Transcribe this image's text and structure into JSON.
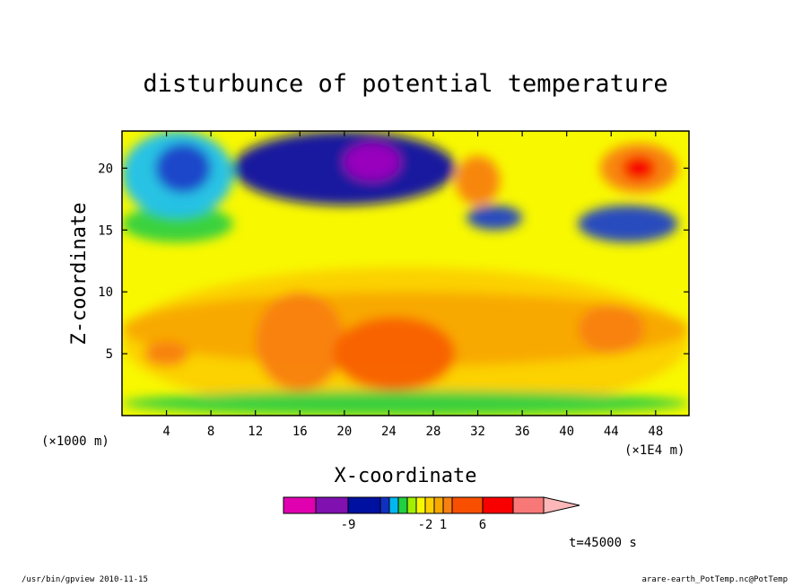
{
  "chart_data": {
    "type": "heatmap",
    "title": "disturbunce of potential temperature",
    "xlabel": "X-coordinate",
    "ylabel": "Z-coordinate",
    "xunit_left": "(×1000 m)",
    "xunit_right": "(×1E4 m)",
    "xlim": [
      0,
      51
    ],
    "ylim": [
      0,
      23
    ],
    "x_ticks": [
      4,
      8,
      12,
      16,
      20,
      24,
      28,
      32,
      36,
      40,
      44,
      48
    ],
    "y_ticks": [
      5,
      10,
      15,
      20
    ],
    "time_label": "t=45000 s",
    "grid": false,
    "colorbar": {
      "colors": [
        "#e000b0",
        "#8010b0",
        "#0010a0",
        "#1030c0",
        "#00b8f0",
        "#20d040",
        "#a0f000",
        "#f8f800",
        "#fcd000",
        "#f8a800",
        "#f88010",
        "#f85000",
        "#f80000",
        "#f87878",
        "#fcb8b8"
      ],
      "tick_labels": [
        {
          "value": -9,
          "label": "-9"
        },
        {
          "value": -2,
          "label": "-2"
        },
        {
          "value": 1,
          "label": "1"
        },
        {
          "value": 6,
          "label": "6"
        }
      ]
    },
    "field_regions": [
      {
        "x": [
          0,
          51
        ],
        "z": [
          0,
          23
        ],
        "level": 0
      },
      {
        "x": [
          0,
          51
        ],
        "z": [
          0,
          12
        ],
        "level": 1
      },
      {
        "x": [
          0,
          51
        ],
        "z": [
          4,
          10
        ],
        "level": 2
      },
      {
        "x": [
          12,
          20
        ],
        "z": [
          2,
          10
        ],
        "level": 3
      },
      {
        "x": [
          19,
          30
        ],
        "z": [
          2,
          8
        ],
        "level": 4
      },
      {
        "x": [
          2,
          6
        ],
        "z": [
          4,
          6
        ],
        "level": 3
      },
      {
        "x": [
          41,
          47
        ],
        "z": [
          5,
          9
        ],
        "level": 3
      },
      {
        "x": [
          0,
          51
        ],
        "z": [
          0,
          2
        ],
        "level": -1
      },
      {
        "x": [
          0,
          10
        ],
        "z": [
          14,
          17
        ],
        "level": -1
      },
      {
        "x": [
          0,
          10
        ],
        "z": [
          16,
          23
        ],
        "level": -3
      },
      {
        "x": [
          3,
          8
        ],
        "z": [
          18,
          22
        ],
        "level": -5
      },
      {
        "x": [
          10,
          30
        ],
        "z": [
          17,
          23
        ],
        "level": -6
      },
      {
        "x": [
          20,
          25
        ],
        "z": [
          19,
          22
        ],
        "level": -9
      },
      {
        "x": [
          30,
          34
        ],
        "z": [
          17,
          21
        ],
        "level": 3
      },
      {
        "x": [
          31,
          36
        ],
        "z": [
          15,
          17
        ],
        "level": -5
      },
      {
        "x": [
          41,
          50
        ],
        "z": [
          14,
          17
        ],
        "level": -5
      },
      {
        "x": [
          43,
          50
        ],
        "z": [
          18,
          22
        ],
        "level": 3
      },
      {
        "x": [
          45,
          48
        ],
        "z": [
          19,
          21
        ],
        "level": 6
      }
    ]
  },
  "footer": {
    "left": "/usr/bin/gpview  2010-11-15",
    "right": "arare-earth_PotTemp.nc@PotTemp"
  }
}
